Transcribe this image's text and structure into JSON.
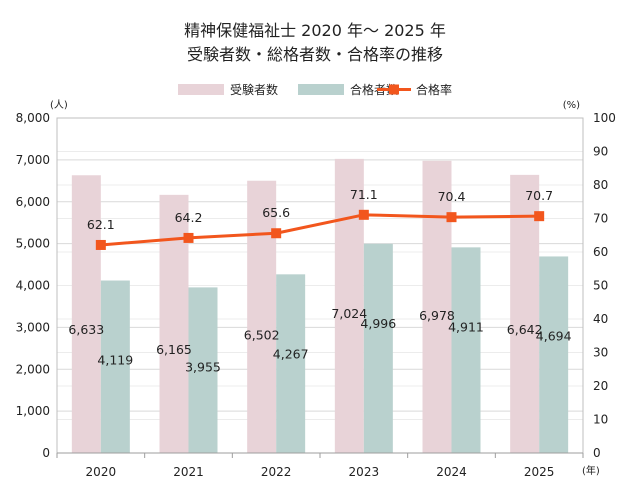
{
  "chart_data": {
    "type": "bar",
    "title": "精神保健福祉士 2020 年～ 2025 年",
    "subtitle": "受験者数・総格者数・合格率の推移",
    "categories": [
      "2020",
      "2021",
      "2022",
      "2023",
      "2024",
      "2025"
    ],
    "series": [
      {
        "name": "受験者数",
        "kind": "bar",
        "axis": "left",
        "color": "#e8d3d8",
        "values": [
          6633,
          6165,
          6502,
          7024,
          6978,
          6642
        ]
      },
      {
        "name": "合格者数",
        "kind": "bar",
        "axis": "left",
        "color": "#b9d1ce",
        "values": [
          4119,
          3955,
          4267,
          4996,
          4911,
          4694
        ]
      },
      {
        "name": "合格率",
        "kind": "line",
        "axis": "right",
        "color": "#f2561d",
        "values": [
          62.1,
          64.2,
          65.6,
          71.1,
          70.4,
          70.7
        ]
      }
    ],
    "bar_labels_1": [
      "6,633",
      "6,165",
      "6,502",
      "7,024",
      "6,978",
      "6,642"
    ],
    "bar_labels_2": [
      "4,119",
      "3,955",
      "4,267",
      "4,996",
      "4,911",
      "4,694"
    ],
    "line_labels": [
      "62.1",
      "64.2",
      "65.6",
      "71.1",
      "70.4",
      "70.7"
    ],
    "ylim_left": [
      0,
      8000
    ],
    "ylim_right": [
      0,
      100
    ],
    "yticks_left": [
      "0",
      "1,000",
      "2,000",
      "3,000",
      "4,000",
      "5,000",
      "6,000",
      "7,000",
      "8,000"
    ],
    "yticks_right": [
      "0",
      "10",
      "20",
      "30",
      "40",
      "50",
      "60",
      "70",
      "80",
      "90",
      "100"
    ],
    "ylabel_left": "(人)",
    "ylabel_right": "(%)",
    "xlabel": "(年)",
    "grid": true,
    "legend_position": "top-center"
  }
}
